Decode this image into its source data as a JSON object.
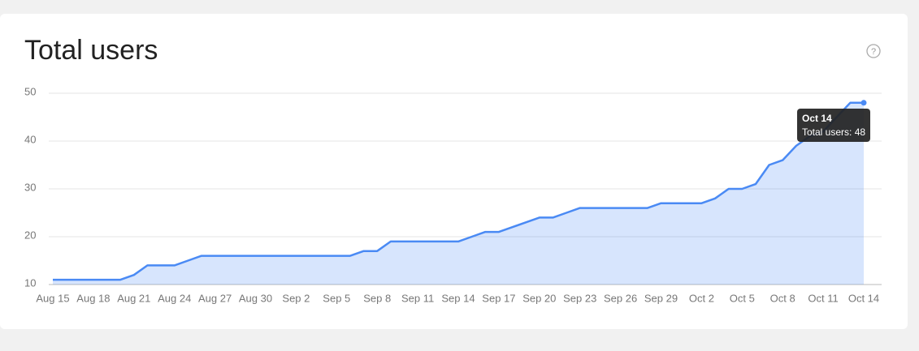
{
  "chart_data": {
    "type": "area",
    "title": "Total users",
    "categories": [
      "Aug 15",
      null,
      null,
      "Aug 18",
      null,
      null,
      "Aug 21",
      null,
      null,
      "Aug 24",
      null,
      null,
      "Aug 27",
      null,
      null,
      "Aug 30",
      null,
      null,
      "Sep 2",
      null,
      null,
      "Sep 5",
      null,
      null,
      "Sep 8",
      null,
      null,
      "Sep 11",
      null,
      null,
      "Sep 14",
      null,
      null,
      "Sep 17",
      null,
      null,
      "Sep 20",
      null,
      null,
      "Sep 23",
      null,
      null,
      "Sep 26",
      null,
      null,
      "Sep 29",
      null,
      null,
      "Oct 2",
      null,
      null,
      "Oct 5",
      null,
      null,
      "Oct 8",
      null,
      null,
      "Oct 11",
      null,
      null,
      "Oct 14"
    ],
    "series": [
      {
        "name": "Total users",
        "color": "#4a8af4",
        "values": [
          11,
          11,
          11,
          11,
          11,
          11,
          12,
          14,
          14,
          14,
          15,
          16,
          16,
          16,
          16,
          16,
          16,
          16,
          16,
          16,
          16,
          16,
          16,
          17,
          17,
          19,
          19,
          19,
          19,
          19,
          19,
          20,
          21,
          21,
          22,
          23,
          24,
          24,
          25,
          26,
          26,
          26,
          26,
          26,
          26,
          27,
          27,
          27,
          27,
          28,
          30,
          30,
          31,
          35,
          36,
          39,
          41,
          42,
          45,
          48,
          48
        ]
      }
    ],
    "ylim": [
      10,
      50
    ],
    "yticks": [
      10,
      20,
      30,
      40,
      50
    ],
    "grid": true,
    "tooltip": {
      "title": "Oct 14",
      "text": "Total users: 48"
    }
  }
}
